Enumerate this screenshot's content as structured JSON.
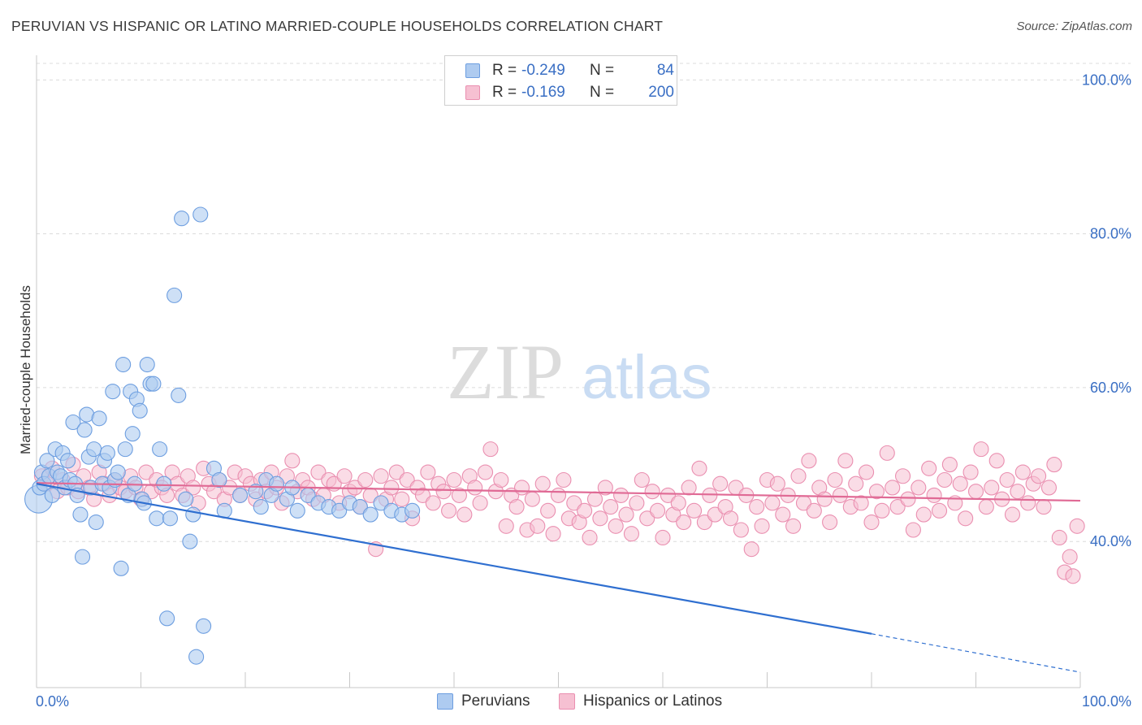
{
  "title": "PERUVIAN VS HISPANIC OR LATINO MARRIED-COUPLE HOUSEHOLDS CORRELATION CHART",
  "source": "Source: ZipAtlas.com",
  "watermark": {
    "zip": "ZIP",
    "atlas": "atlas"
  },
  "legend_top": {
    "rows": [
      {
        "r_label": "R =",
        "r_value": "-0.249",
        "n_label": "N =",
        "n_value": "84"
      },
      {
        "r_label": "R =",
        "r_value": "-0.169",
        "n_label": "N =",
        "n_value": "200"
      }
    ]
  },
  "legend_bottom": {
    "items": [
      {
        "label": "Peruvians"
      },
      {
        "label": "Hispanics or Latinos"
      }
    ]
  },
  "colors": {
    "blue_fill": "#aecbf0",
    "blue_stroke": "#6d9ee0",
    "blue_line": "#2f6fd0",
    "pink_fill": "#f6c0d2",
    "pink_stroke": "#ea8fb0",
    "pink_line": "#e06a95",
    "axis_text": "#3a6fc4",
    "grid": "#dcdcdc"
  },
  "chart_data": {
    "type": "scatter",
    "ylabel": "Married-couple Households",
    "xlabel": "",
    "xlim": [
      0,
      100
    ],
    "ylim": [
      21,
      103
    ],
    "x_ticks": [
      "0.0%",
      "100.0%"
    ],
    "y_ticks": [
      {
        "value": 100,
        "label": "100.0%"
      },
      {
        "value": 80,
        "label": "80.0%"
      },
      {
        "value": 60,
        "label": "60.0%"
      },
      {
        "value": 40,
        "label": "40.0%"
      }
    ],
    "grid": "horizontal dashed",
    "series": [
      {
        "name": "Peruvians",
        "r": -0.249,
        "n": 84,
        "trend": {
          "x": [
            0,
            80
          ],
          "y": [
            47.5,
            28.0
          ]
        },
        "trend_extension": {
          "x": [
            80,
            100
          ],
          "y": [
            28.0,
            23.0
          ]
        },
        "points": [
          [
            0.2,
            45.5
          ],
          [
            0.3,
            47
          ],
          [
            0.5,
            49
          ],
          [
            0.7,
            47.5
          ],
          [
            1,
            50.5
          ],
          [
            1.2,
            48.5
          ],
          [
            1.5,
            46
          ],
          [
            1.8,
            52
          ],
          [
            2,
            49
          ],
          [
            2.3,
            48.5
          ],
          [
            2.5,
            51.5
          ],
          [
            2.7,
            47
          ],
          [
            3,
            50.5
          ],
          [
            3.2,
            48
          ],
          [
            3.5,
            55.5
          ],
          [
            3.7,
            47.5
          ],
          [
            3.9,
            46
          ],
          [
            4.2,
            43.5
          ],
          [
            4.4,
            38
          ],
          [
            4.6,
            54.5
          ],
          [
            4.8,
            56.5
          ],
          [
            5,
            51
          ],
          [
            5.2,
            47
          ],
          [
            5.5,
            52
          ],
          [
            5.7,
            42.5
          ],
          [
            6,
            56
          ],
          [
            6.3,
            47.5
          ],
          [
            6.5,
            50.5
          ],
          [
            6.8,
            51.5
          ],
          [
            7,
            47
          ],
          [
            7.3,
            59.5
          ],
          [
            7.5,
            48
          ],
          [
            7.8,
            49
          ],
          [
            8.1,
            36.5
          ],
          [
            8.3,
            63
          ],
          [
            8.5,
            52
          ],
          [
            8.8,
            46
          ],
          [
            9,
            59.5
          ],
          [
            9.2,
            54
          ],
          [
            9.4,
            47.5
          ],
          [
            9.6,
            58.5
          ],
          [
            9.9,
            57
          ],
          [
            10.1,
            45.5
          ],
          [
            10.3,
            45
          ],
          [
            10.6,
            63
          ],
          [
            10.9,
            60.5
          ],
          [
            11.2,
            60.5
          ],
          [
            11.5,
            43
          ],
          [
            11.8,
            52
          ],
          [
            12.2,
            47.5
          ],
          [
            12.5,
            30
          ],
          [
            12.8,
            43
          ],
          [
            13.2,
            72
          ],
          [
            13.6,
            59
          ],
          [
            13.9,
            82
          ],
          [
            14.3,
            45.5
          ],
          [
            14.7,
            40
          ],
          [
            15,
            43.5
          ],
          [
            15.3,
            25
          ],
          [
            15.7,
            82.5
          ],
          [
            16,
            29
          ],
          [
            17,
            49.5
          ],
          [
            17.5,
            48
          ],
          [
            18,
            44
          ],
          [
            19.5,
            46
          ],
          [
            21,
            46.5
          ],
          [
            21.5,
            44.5
          ],
          [
            22,
            48
          ],
          [
            22.5,
            46
          ],
          [
            23,
            47.5
          ],
          [
            24,
            45.5
          ],
          [
            24.5,
            47
          ],
          [
            25,
            44
          ],
          [
            26,
            46
          ],
          [
            27,
            45
          ],
          [
            28,
            44.5
          ],
          [
            29,
            44
          ],
          [
            30,
            45
          ],
          [
            31,
            44.5
          ],
          [
            32,
            43.5
          ],
          [
            33,
            45
          ],
          [
            34,
            44
          ],
          [
            35,
            43.5
          ],
          [
            36,
            44
          ]
        ]
      },
      {
        "name": "Hispanics or Latinos",
        "r": -0.169,
        "n": 200,
        "trend": {
          "x": [
            0,
            100
          ],
          "y": [
            47.6,
            45.3
          ]
        },
        "points": [
          [
            0.5,
            48.5
          ],
          [
            1,
            47.5
          ],
          [
            1.5,
            49.5
          ],
          [
            2,
            46.5
          ],
          [
            2.5,
            48
          ],
          [
            3,
            47
          ],
          [
            3.5,
            50
          ],
          [
            4,
            46.5
          ],
          [
            4.5,
            48.5
          ],
          [
            5,
            47
          ],
          [
            5.5,
            45.5
          ],
          [
            6,
            49
          ],
          [
            6.5,
            47.5
          ],
          [
            7,
            46
          ],
          [
            7.5,
            48
          ],
          [
            8,
            47
          ],
          [
            8.5,
            46.5
          ],
          [
            9,
            48.5
          ],
          [
            9.5,
            47
          ],
          [
            10,
            45.5
          ],
          [
            10.5,
            49
          ],
          [
            11,
            46.5
          ],
          [
            11.5,
            48
          ],
          [
            12,
            47
          ],
          [
            12.5,
            46
          ],
          [
            13,
            49
          ],
          [
            13.5,
            47.5
          ],
          [
            14,
            46
          ],
          [
            14.5,
            48.5
          ],
          [
            15,
            47
          ],
          [
            15.5,
            45
          ],
          [
            16,
            49.5
          ],
          [
            16.5,
            47.5
          ],
          [
            17,
            46.5
          ],
          [
            17.5,
            48
          ],
          [
            18,
            45.5
          ],
          [
            18.5,
            47
          ],
          [
            19,
            49
          ],
          [
            19.5,
            46
          ],
          [
            20,
            48.5
          ],
          [
            20.5,
            47.5
          ],
          [
            21,
            45.5
          ],
          [
            21.5,
            48
          ],
          [
            22,
            46.5
          ],
          [
            22.5,
            49
          ],
          [
            23,
            47
          ],
          [
            23.5,
            45
          ],
          [
            24,
            48.5
          ],
          [
            24.5,
            50.5
          ],
          [
            25,
            46.5
          ],
          [
            25.5,
            48
          ],
          [
            26,
            47
          ],
          [
            26.5,
            45.5
          ],
          [
            27,
            49
          ],
          [
            27.5,
            46
          ],
          [
            28,
            48
          ],
          [
            28.5,
            47.5
          ],
          [
            29,
            45
          ],
          [
            29.5,
            48.5
          ],
          [
            30,
            46.5
          ],
          [
            30.5,
            47
          ],
          [
            31,
            44.5
          ],
          [
            31.5,
            48
          ],
          [
            32,
            46
          ],
          [
            32.5,
            39
          ],
          [
            33,
            48.5
          ],
          [
            33.5,
            45.5
          ],
          [
            34,
            47
          ],
          [
            34.5,
            49
          ],
          [
            35,
            45.5
          ],
          [
            35.5,
            48
          ],
          [
            36,
            43
          ],
          [
            36.5,
            47
          ],
          [
            37,
            46
          ],
          [
            37.5,
            49
          ],
          [
            38,
            45
          ],
          [
            38.5,
            47.5
          ],
          [
            39,
            46.5
          ],
          [
            39.5,
            44
          ],
          [
            40,
            48
          ],
          [
            40.5,
            46
          ],
          [
            41,
            43.5
          ],
          [
            41.5,
            48.5
          ],
          [
            42,
            47
          ],
          [
            42.5,
            45
          ],
          [
            43,
            49
          ],
          [
            43.5,
            52
          ],
          [
            44,
            46.5
          ],
          [
            44.5,
            48
          ],
          [
            45,
            42
          ],
          [
            45.5,
            46
          ],
          [
            46,
            44.5
          ],
          [
            46.5,
            47
          ],
          [
            47,
            41.5
          ],
          [
            47.5,
            45.5
          ],
          [
            48,
            42
          ],
          [
            48.5,
            47.5
          ],
          [
            49,
            44
          ],
          [
            49.5,
            41
          ],
          [
            50,
            46
          ],
          [
            50.5,
            48
          ],
          [
            51,
            43
          ],
          [
            51.5,
            45
          ],
          [
            52,
            42.5
          ],
          [
            52.5,
            44
          ],
          [
            53,
            40.5
          ],
          [
            53.5,
            45.5
          ],
          [
            54,
            43
          ],
          [
            54.5,
            47
          ],
          [
            55,
            44.5
          ],
          [
            55.5,
            42
          ],
          [
            56,
            46
          ],
          [
            56.5,
            43.5
          ],
          [
            57,
            41
          ],
          [
            57.5,
            45
          ],
          [
            58,
            48
          ],
          [
            58.5,
            43
          ],
          [
            59,
            46.5
          ],
          [
            59.5,
            44
          ],
          [
            60,
            40.5
          ],
          [
            60.5,
            46
          ],
          [
            61,
            43.5
          ],
          [
            61.5,
            45
          ],
          [
            62,
            42.5
          ],
          [
            62.5,
            47
          ],
          [
            63,
            44
          ],
          [
            63.5,
            49.5
          ],
          [
            64,
            42.5
          ],
          [
            64.5,
            46
          ],
          [
            65,
            43.5
          ],
          [
            65.5,
            47.5
          ],
          [
            66,
            44.5
          ],
          [
            66.5,
            43
          ],
          [
            67,
            47
          ],
          [
            67.5,
            41.5
          ],
          [
            68,
            46
          ],
          [
            68.5,
            39
          ],
          [
            69,
            44.5
          ],
          [
            69.5,
            42
          ],
          [
            70,
            48
          ],
          [
            70.5,
            45
          ],
          [
            71,
            47.5
          ],
          [
            71.5,
            43.5
          ],
          [
            72,
            46
          ],
          [
            72.5,
            42
          ],
          [
            73,
            48.5
          ],
          [
            73.5,
            45
          ],
          [
            74,
            50.5
          ],
          [
            74.5,
            44
          ],
          [
            75,
            47
          ],
          [
            75.5,
            45.5
          ],
          [
            76,
            42.5
          ],
          [
            76.5,
            48
          ],
          [
            77,
            46
          ],
          [
            77.5,
            50.5
          ],
          [
            78,
            44.5
          ],
          [
            78.5,
            47.5
          ],
          [
            79,
            45
          ],
          [
            79.5,
            49
          ],
          [
            80,
            42.5
          ],
          [
            80.5,
            46.5
          ],
          [
            81,
            44
          ],
          [
            81.5,
            51.5
          ],
          [
            82,
            47
          ],
          [
            82.5,
            44.5
          ],
          [
            83,
            48.5
          ],
          [
            83.5,
            45.5
          ],
          [
            84,
            41.5
          ],
          [
            84.5,
            47
          ],
          [
            85,
            43.5
          ],
          [
            85.5,
            49.5
          ],
          [
            86,
            46
          ],
          [
            86.5,
            44
          ],
          [
            87,
            48
          ],
          [
            87.5,
            50
          ],
          [
            88,
            45
          ],
          [
            88.5,
            47.5
          ],
          [
            89,
            43
          ],
          [
            89.5,
            49
          ],
          [
            90,
            46.5
          ],
          [
            90.5,
            52
          ],
          [
            91,
            44.5
          ],
          [
            91.5,
            47
          ],
          [
            92,
            50.5
          ],
          [
            92.5,
            45.5
          ],
          [
            93,
            48
          ],
          [
            93.5,
            43.5
          ],
          [
            94,
            46.5
          ],
          [
            94.5,
            49
          ],
          [
            95,
            45
          ],
          [
            95.5,
            47.5
          ],
          [
            96,
            48.5
          ],
          [
            96.5,
            44.5
          ],
          [
            97,
            47
          ],
          [
            97.5,
            50
          ],
          [
            98,
            40.5
          ],
          [
            98.5,
            36
          ],
          [
            99,
            38
          ],
          [
            99.3,
            35.5
          ],
          [
            99.7,
            42
          ]
        ]
      }
    ]
  }
}
